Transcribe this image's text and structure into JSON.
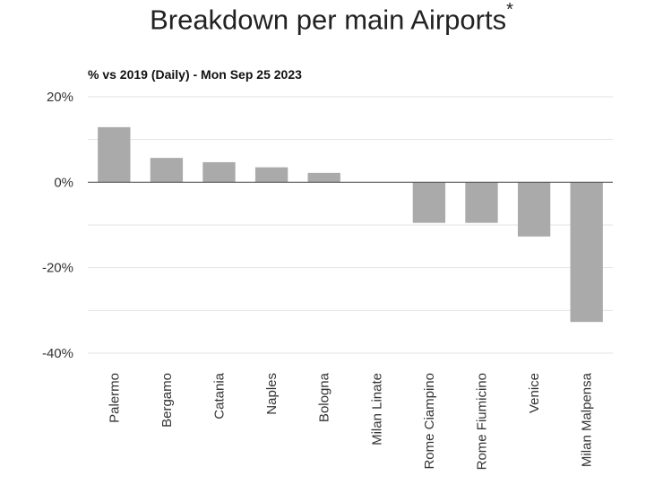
{
  "chart_data": {
    "type": "bar",
    "title": "Breakdown per main Airports",
    "title_mark": "*",
    "subtitle": "% vs 2019 (Daily) - Mon Sep 25 2023",
    "xlabel": "",
    "ylabel": "",
    "categories": [
      "Palermo",
      "Bergamo",
      "Catania",
      "Naples",
      "Bologna",
      "Milan Linate",
      "Rome Ciampino",
      "Rome Fiumicino",
      "Venice",
      "Milan Malpensa"
    ],
    "values": [
      12.9,
      5.7,
      4.7,
      3.5,
      2.2,
      0,
      -9.5,
      -9.5,
      -12.7,
      -32.7
    ],
    "unit": "%",
    "ylim": [
      -40,
      20
    ],
    "yticks": [
      20,
      0,
      -20,
      -40
    ],
    "ytick_labels": [
      "20%",
      "0%",
      "-20%",
      "-40%"
    ],
    "minor_gridlines": [
      10,
      -10,
      -30
    ],
    "grid": true,
    "legend": "none",
    "colors": {
      "bar": "#aaaaaa",
      "grid": "#e3e3e3",
      "zero_line": "#555555"
    }
  }
}
